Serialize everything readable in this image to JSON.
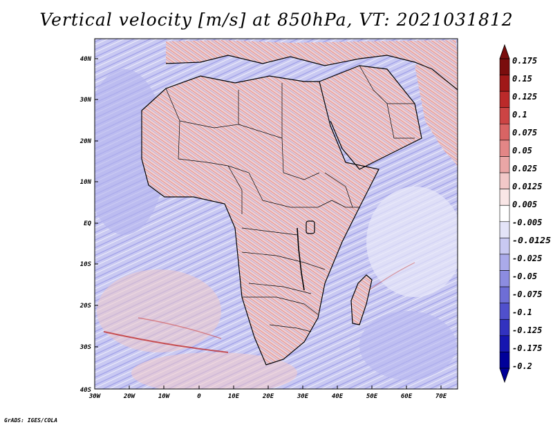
{
  "title": "Vertical velocity [m/s] at 850hPa, VT: 2021031812",
  "map": {
    "variable": "vertical velocity",
    "units": "m/s",
    "level": "850hPa",
    "valid_time": "2021031812",
    "lat_labels": [
      "40N",
      "30N",
      "20N",
      "10N",
      "EQ",
      "10S",
      "20S",
      "30S",
      "40S"
    ],
    "lon_labels": [
      "30W",
      "20W",
      "10W",
      "0",
      "10E",
      "20E",
      "30E",
      "40E",
      "50E",
      "60E",
      "70E"
    ],
    "colors": {
      "positive": "#d03c3c",
      "negative": "#4646d2",
      "neutral": "#ffffff",
      "coast": "#000000"
    }
  },
  "colorbar": {
    "labels": [
      "0.175",
      "0.15",
      "0.125",
      "0.1",
      "0.075",
      "0.05",
      "0.025",
      "0.0125",
      "0.005",
      "-0.005",
      "-0.0125",
      "-0.025",
      "-0.05",
      "-0.075",
      "-0.1",
      "-0.125",
      "-0.175",
      "-0.2"
    ],
    "colors": [
      "#7a0d0d",
      "#a01818",
      "#bb2a2a",
      "#cc4444",
      "#d96464",
      "#e38686",
      "#eaa6a6",
      "#f2c8c8",
      "#f9e6e6",
      "#ffffff",
      "#e4e4f8",
      "#c9c9f2",
      "#aaaaea",
      "#8c8ce0",
      "#6e6ed6",
      "#5050cc",
      "#3232bf",
      "#1616b0",
      "#000099"
    ]
  },
  "credit": "GrADS: IGES/COLA"
}
